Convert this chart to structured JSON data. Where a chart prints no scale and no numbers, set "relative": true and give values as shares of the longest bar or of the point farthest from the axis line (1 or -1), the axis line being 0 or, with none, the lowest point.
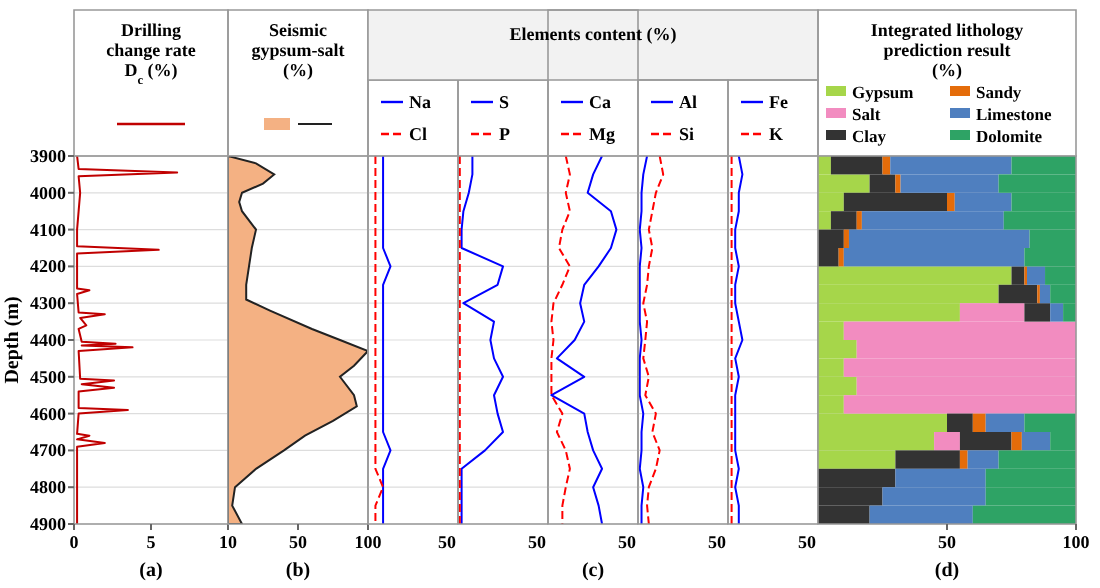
{
  "chart_data": [
    {
      "type": "line",
      "orientation": "horizontal",
      "title": "Drilling change rate D$_{c}$ (%)",
      "xlabel": "(a)",
      "ylabel": "Depth (m)",
      "grid": "y",
      "xlim": [
        0,
        10
      ],
      "xticks": [
        0,
        5,
        10
      ],
      "ylim": [
        4900,
        3900
      ],
      "yticks": [
        3900,
        4000,
        4100,
        4200,
        4300,
        4400,
        4500,
        4600,
        4700,
        4800,
        4900
      ],
      "x": [
        3900,
        3935,
        3945,
        3955,
        4000,
        4050,
        4100,
        4145,
        4155,
        4165,
        4260,
        4265,
        4275,
        4325,
        4330,
        4340,
        4360,
        4370,
        4405,
        4410,
        4415,
        4420,
        4430,
        4505,
        4510,
        4520,
        4530,
        4540,
        4585,
        4590,
        4600,
        4655,
        4660,
        4670,
        4680,
        4690,
        4750,
        4800,
        4850,
        4900
      ],
      "series": [
        {
          "color": "#c00000",
          "values": [
            0.2,
            0.3,
            6.7,
            0.3,
            0.4,
            0.3,
            0.2,
            0.2,
            5.5,
            0.2,
            0.2,
            1.0,
            0.2,
            0.3,
            2.0,
            0.4,
            0.8,
            0.3,
            0.5,
            2.7,
            0.5,
            3.8,
            0.3,
            0.4,
            2.6,
            0.5,
            2.6,
            0.3,
            0.3,
            3.5,
            0.3,
            0.2,
            1.0,
            0.2,
            2.0,
            0.2,
            0.2,
            0.2,
            0.2,
            0.2
          ]
        }
      ]
    },
    {
      "type": "area",
      "orientation": "horizontal",
      "title": "Seismic gypsum-salt (%)",
      "xlabel": "(b)",
      "grid": "y",
      "tick_labels": "x",
      "xlim": [
        0,
        100
      ],
      "xticks": [
        50,
        100
      ],
      "ylim": [
        4900,
        3900
      ],
      "yticks": [
        3900,
        4000,
        4100,
        4200,
        4300,
        4400,
        4500,
        4600,
        4700,
        4800,
        4900
      ],
      "x": [
        3900,
        3920,
        3950,
        3975,
        4000,
        4025,
        4050,
        4100,
        4150,
        4200,
        4250,
        4290,
        4320,
        4370,
        4400,
        4430,
        4470,
        4500,
        4550,
        4580,
        4620,
        4660,
        4700,
        4750,
        4800,
        4850,
        4900
      ],
      "series": [
        {
          "color": "#f4b183",
          "values": [
            0,
            20,
            33,
            25,
            10,
            8,
            10,
            20,
            17,
            15,
            13,
            13,
            30,
            60,
            80,
            100,
            90,
            80,
            90,
            92,
            75,
            55,
            40,
            20,
            5,
            3,
            10
          ]
        }
      ]
    },
    {
      "type": "line",
      "orientation": "horizontal",
      "relative": true,
      "annotations": [
        "50"
      ],
      "legend": "top",
      "grid": "y",
      "tick_labels": "x",
      "ylim": [
        4900,
        3900
      ],
      "yticks": [
        3900,
        4000,
        4100,
        4200,
        4300,
        4400,
        4500,
        4600,
        4700,
        4800,
        4900
      ],
      "x": [
        3900,
        3950,
        4000,
        4050,
        4100,
        4150,
        4200,
        4250,
        4300,
        4350,
        4400,
        4450,
        4500,
        4550,
        4600,
        4650,
        4700,
        4750,
        4800,
        4850,
        4900
      ],
      "series": [
        {
          "name": "Na",
          "color": "#0000ff",
          "values": [
            0.67,
            0.67,
            0.67,
            0.67,
            0.67,
            0.67,
            1,
            0.67,
            0.67,
            0.67,
            0.67,
            0.67,
            0.67,
            0.67,
            0.67,
            0.67,
            1,
            0.67,
            0.67,
            0.67,
            0.67
          ]
        },
        {
          "name": "Cl",
          "color": "#ff0000",
          "line_style": "dashed",
          "values": [
            0.33,
            0.33,
            0.33,
            0.33,
            0.33,
            0.33,
            0.33,
            0.33,
            0.33,
            0.33,
            0.33,
            0.33,
            0.33,
            0.33,
            0.33,
            0.33,
            0.33,
            0.33,
            0.67,
            0.33,
            0.33
          ]
        }
      ]
    },
    {
      "type": "line",
      "orientation": "horizontal",
      "relative": true,
      "annotations": [
        "50"
      ],
      "legend": "top",
      "grid": "y",
      "tick_labels": "x",
      "ylim": [
        4900,
        3900
      ],
      "yticks": [
        3900,
        4000,
        4100,
        4200,
        4300,
        4400,
        4500,
        4600,
        4700,
        4800,
        4900
      ],
      "x": [
        3900,
        3950,
        4000,
        4050,
        4100,
        4150,
        4200,
        4250,
        4300,
        4350,
        4400,
        4450,
        4500,
        4550,
        4600,
        4650,
        4700,
        4750,
        4800,
        4850,
        4900
      ],
      "series": [
        {
          "name": "S",
          "color": "#0000ff",
          "values": [
            0.32,
            0.32,
            0.24,
            0.12,
            0.08,
            0.08,
            1,
            0.88,
            0.12,
            0.8,
            0.72,
            0.8,
            1,
            0.8,
            0.88,
            1,
            0.6,
            0.08,
            0.08,
            0.08,
            0.08
          ]
        },
        {
          "name": "P",
          "color": "#ff0000",
          "line_style": "dashed",
          "values": [
            0.04,
            0.04,
            0.04,
            0.04,
            0.04,
            0.04,
            0.04,
            0.04,
            0.04,
            0.04,
            0.04,
            0.04,
            0.04,
            0.04,
            0.04,
            0.04,
            0.04,
            0.04,
            0.04,
            0.04,
            0.04
          ]
        }
      ]
    },
    {
      "type": "line",
      "orientation": "horizontal",
      "relative": true,
      "annotations": [
        "50"
      ],
      "legend": "top",
      "grid": "y",
      "tick_labels": "x",
      "ylim": [
        4900,
        3900
      ],
      "yticks": [
        3900,
        4000,
        4100,
        4200,
        4300,
        4400,
        4500,
        4600,
        4700,
        4800,
        4900
      ],
      "x": [
        3900,
        3950,
        4000,
        4050,
        4100,
        4150,
        4200,
        4250,
        4300,
        4350,
        4400,
        4450,
        4500,
        4550,
        4600,
        4650,
        4700,
        4750,
        4800,
        4850,
        4900
      ],
      "title": "Elements content (%)",
      "xlabel": "(c)",
      "series": [
        {
          "name": "Ca",
          "color": "#0000ff",
          "values": [
            0.79,
            0.66,
            0.58,
            0.92,
            1,
            0.92,
            0.74,
            0.53,
            0.47,
            0.53,
            0.39,
            0.13,
            0.53,
            0.05,
            0.53,
            0.58,
            0.66,
            0.79,
            0.66,
            0.74,
            0.79
          ]
        },
        {
          "name": "Mg",
          "color": "#ff0000",
          "line_style": "dashed",
          "values": [
            0.26,
            0.32,
            0.26,
            0.32,
            0.21,
            0.16,
            0.32,
            0.21,
            0.08,
            0.05,
            0.08,
            0.05,
            0.05,
            0.05,
            0.21,
            0.13,
            0.26,
            0.32,
            0.26,
            0.21,
            0.21
          ]
        }
      ]
    },
    {
      "type": "line",
      "orientation": "horizontal",
      "relative": true,
      "annotations": [
        "50"
      ],
      "legend": "top",
      "grid": "y",
      "tick_labels": "x",
      "ylim": [
        4900,
        3900
      ],
      "yticks": [
        3900,
        4000,
        4100,
        4200,
        4300,
        4400,
        4500,
        4600,
        4700,
        4800,
        4900
      ],
      "x": [
        3900,
        3950,
        4000,
        4050,
        4100,
        4150,
        4200,
        4250,
        4300,
        4350,
        4400,
        4450,
        4500,
        4550,
        4600,
        4650,
        4700,
        4750,
        4800,
        4850,
        4900
      ],
      "series": [
        {
          "name": "Al",
          "color": "#0000ff",
          "values": [
            0.36,
            0.21,
            0.14,
            0.14,
            0.07,
            0.14,
            0.07,
            0.07,
            0.07,
            0.07,
            0.14,
            0.07,
            0.07,
            0.07,
            0.21,
            0.14,
            0.14,
            0.07,
            0.21,
            0.14,
            0.14
          ]
        },
        {
          "name": "Si",
          "color": "#ff0000",
          "line_style": "dashed",
          "values": [
            0.86,
            1,
            0.71,
            0.57,
            0.43,
            0.57,
            0.43,
            0.36,
            0.21,
            0.36,
            0.29,
            0.21,
            0.43,
            0.29,
            0.71,
            0.57,
            0.86,
            0.71,
            0.43,
            0.36,
            0.43
          ]
        }
      ]
    },
    {
      "type": "line",
      "orientation": "horizontal",
      "relative": true,
      "annotations": [
        "50"
      ],
      "legend": "top",
      "grid": "y",
      "tick_labels": "x",
      "ylim": [
        4900,
        3900
      ],
      "yticks": [
        3900,
        4000,
        4100,
        4200,
        4300,
        4400,
        4500,
        4600,
        4700,
        4800,
        4900
      ],
      "x": [
        3900,
        3950,
        4000,
        4050,
        4100,
        4150,
        4200,
        4250,
        4300,
        4350,
        4400,
        4450,
        4500,
        4550,
        4600,
        4650,
        4700,
        4750,
        4800,
        4850,
        4900
      ],
      "series": [
        {
          "name": "Fe",
          "color": "#0000ff",
          "values": [
            0.75,
            1,
            0.75,
            0.75,
            0.5,
            0.5,
            0.75,
            0.5,
            0.5,
            0.75,
            1,
            0.5,
            0.75,
            0.5,
            0.5,
            0.5,
            0.5,
            0.75,
            0.5,
            0.75,
            0.75
          ]
        },
        {
          "name": "K",
          "color": "#ff0000",
          "line_style": "dashed",
          "values": [
            0.25,
            0.25,
            0.25,
            0.25,
            0.25,
            0.25,
            0.25,
            0.25,
            0.25,
            0.25,
            0.25,
            0.25,
            0.25,
            0.25,
            0.25,
            0.25,
            0.25,
            0.25,
            0.25,
            0.25,
            0.25
          ]
        }
      ]
    },
    {
      "type": "bar",
      "orientation": "horizontal",
      "stacked": true,
      "title": "Integrated lithology prediction result (%)",
      "xlabel": "(d)",
      "legend": "top",
      "grid": "y",
      "tick_labels": "x",
      "xlim": [
        0,
        100
      ],
      "xticks": [
        50,
        100
      ],
      "ylim": [
        4900,
        3900
      ],
      "yticks": [
        3900,
        4000,
        4100,
        4200,
        4300,
        4400,
        4500,
        4600,
        4700,
        4800,
        4900
      ],
      "x": [
        3925,
        3975,
        4025,
        4075,
        4125,
        4175,
        4225,
        4275,
        4325,
        4375,
        4425,
        4475,
        4525,
        4575,
        4625,
        4675,
        4725,
        4775,
        4825,
        4875
      ],
      "series": [
        {
          "name": "Gypsum",
          "color": "#a6d64a",
          "values": [
            5,
            20,
            10,
            5,
            0,
            0,
            75,
            70,
            55,
            10,
            15,
            10,
            15,
            10,
            50,
            45,
            30,
            0,
            0,
            0
          ]
        },
        {
          "name": "Salt",
          "color": "#f28cc0",
          "values": [
            0,
            0,
            0,
            0,
            0,
            0,
            0,
            0,
            25,
            90,
            85,
            90,
            85,
            90,
            0,
            10,
            0,
            0,
            0,
            0
          ]
        },
        {
          "name": "Clay",
          "color": "#333333",
          "values": [
            20,
            10,
            40,
            10,
            10,
            8,
            5,
            15,
            10,
            0,
            0,
            0,
            0,
            0,
            10,
            20,
            25,
            30,
            25,
            20
          ]
        },
        {
          "name": "Sandy",
          "color": "#e46c0a",
          "values": [
            3,
            2,
            3,
            2,
            2,
            2,
            1,
            1,
            0,
            0,
            0,
            0,
            0,
            0,
            5,
            4,
            3,
            0,
            0,
            0
          ]
        },
        {
          "name": "Limestone",
          "color": "#4f7fbf",
          "values": [
            47,
            38,
            22,
            55,
            70,
            70,
            7,
            4,
            5,
            0,
            0,
            0,
            0,
            0,
            15,
            11,
            12,
            35,
            40,
            40
          ]
        },
        {
          "name": "Dolomite",
          "color": "#2ea365",
          "values": [
            25,
            30,
            25,
            28,
            18,
            20,
            12,
            10,
            5,
            0,
            0,
            0,
            0,
            0,
            20,
            10,
            30,
            35,
            35,
            40
          ]
        }
      ]
    }
  ]
}
